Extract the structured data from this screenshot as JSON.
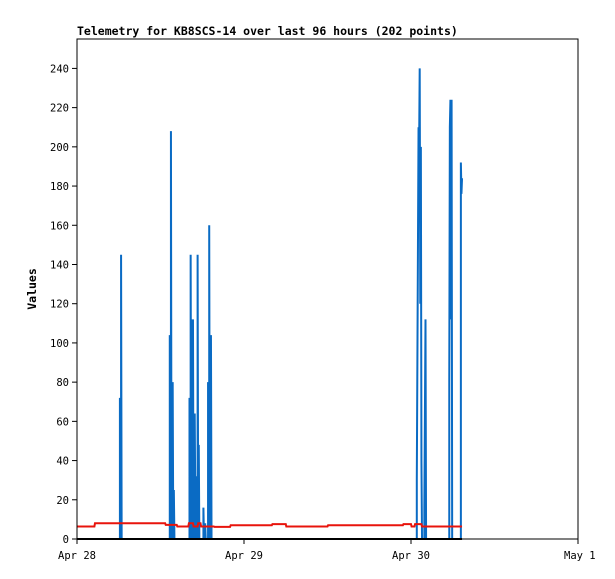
{
  "chart_data": {
    "type": "line",
    "title": "Telemetry for KB8SCS-14 over last 96 hours (202 points)",
    "xlabel": "",
    "ylabel": "Values",
    "xlim": [
      "2024-04-28T00:00",
      "2024-05-01T00:00"
    ],
    "ylim": [
      0,
      255
    ],
    "x_ticks": [
      {
        "label": "Apr 28",
        "t": "2024-04-28T00:00"
      },
      {
        "label": "Apr 29",
        "t": "2024-04-29T00:00"
      },
      {
        "label": "Apr 30",
        "t": "2024-04-30T00:00"
      },
      {
        "label": "May 1",
        "t": "2024-05-01T00:00"
      }
    ],
    "y_ticks": [
      0,
      20,
      40,
      60,
      80,
      100,
      120,
      140,
      160,
      180,
      200,
      220,
      240
    ],
    "grid": false,
    "colors": {
      "series_blue": "#0a6bc4",
      "series_red": "#e8140c",
      "series_black": "#000000",
      "axis": "#000000"
    },
    "series": [
      {
        "color": "#0a6bc4",
        "points": [
          [
            "2024-04-28T00:00",
            0
          ],
          [
            "2024-04-28T06:10",
            0
          ],
          [
            "2024-04-28T06:10",
            72
          ],
          [
            "2024-04-28T06:15",
            0
          ],
          [
            "2024-04-28T06:20",
            0
          ],
          [
            "2024-04-28T06:20",
            145
          ],
          [
            "2024-04-28T06:25",
            0
          ],
          [
            "2024-04-28T13:20",
            0
          ],
          [
            "2024-04-28T13:20",
            104
          ],
          [
            "2024-04-28T13:25",
            0
          ],
          [
            "2024-04-28T13:30",
            0
          ],
          [
            "2024-04-28T13:30",
            208
          ],
          [
            "2024-04-28T13:35",
            0
          ],
          [
            "2024-04-28T13:45",
            0
          ],
          [
            "2024-04-28T13:45",
            80
          ],
          [
            "2024-04-28T13:50",
            0
          ],
          [
            "2024-04-28T13:55",
            0
          ],
          [
            "2024-04-28T13:55",
            25
          ],
          [
            "2024-04-28T14:00",
            0
          ],
          [
            "2024-04-28T16:10",
            0
          ],
          [
            "2024-04-28T16:10",
            72
          ],
          [
            "2024-04-28T16:15",
            0
          ],
          [
            "2024-04-28T16:20",
            0
          ],
          [
            "2024-04-28T16:20",
            145
          ],
          [
            "2024-04-28T16:25",
            0
          ],
          [
            "2024-04-28T16:30",
            0
          ],
          [
            "2024-04-28T16:30",
            112
          ],
          [
            "2024-04-28T16:35",
            16
          ],
          [
            "2024-04-28T16:40",
            112
          ],
          [
            "2024-04-28T16:45",
            0
          ],
          [
            "2024-04-28T16:55",
            0
          ],
          [
            "2024-04-28T16:55",
            64
          ],
          [
            "2024-04-28T17:00",
            16
          ],
          [
            "2024-04-28T17:05",
            32
          ],
          [
            "2024-04-28T17:10",
            0
          ],
          [
            "2024-04-28T17:20",
            0
          ],
          [
            "2024-04-28T17:20",
            145
          ],
          [
            "2024-04-28T17:25",
            0
          ],
          [
            "2024-04-28T17:30",
            0
          ],
          [
            "2024-04-28T17:30",
            48
          ],
          [
            "2024-04-28T17:35",
            0
          ],
          [
            "2024-04-28T18:10",
            0
          ],
          [
            "2024-04-28T18:10",
            16
          ],
          [
            "2024-04-28T18:15",
            0
          ],
          [
            "2024-04-28T18:25",
            0
          ],
          [
            "2024-04-28T18:25",
            8
          ],
          [
            "2024-04-28T18:30",
            0
          ],
          [
            "2024-04-28T18:50",
            0
          ],
          [
            "2024-04-28T18:50",
            80
          ],
          [
            "2024-04-28T18:55",
            0
          ],
          [
            "2024-04-28T19:00",
            0
          ],
          [
            "2024-04-28T19:00",
            160
          ],
          [
            "2024-04-28T19:05",
            0
          ],
          [
            "2024-04-28T19:15",
            0
          ],
          [
            "2024-04-28T19:15",
            104
          ],
          [
            "2024-04-28T19:20",
            0
          ],
          [
            "2024-04-30T00:50",
            0
          ],
          [
            "2024-04-30T00:50",
            30
          ],
          [
            "2024-04-30T00:55",
            90
          ],
          [
            "2024-04-30T01:00",
            150
          ],
          [
            "2024-04-30T01:05",
            210
          ],
          [
            "2024-04-30T01:10",
            200
          ],
          [
            "2024-04-30T01:15",
            240
          ],
          [
            "2024-04-30T01:20",
            120
          ],
          [
            "2024-04-30T01:25",
            200
          ],
          [
            "2024-04-30T01:30",
            40
          ],
          [
            "2024-04-30T01:35",
            0
          ],
          [
            "2024-04-30T01:55",
            0
          ],
          [
            "2024-04-30T01:55",
            16
          ],
          [
            "2024-04-30T02:00",
            64
          ],
          [
            "2024-04-30T02:05",
            112
          ],
          [
            "2024-04-30T02:10",
            0
          ],
          [
            "2024-04-30T05:30",
            0
          ],
          [
            "2024-04-30T05:30",
            80
          ],
          [
            "2024-04-30T05:35",
            210
          ],
          [
            "2024-04-30T05:40",
            224
          ],
          [
            "2024-04-30T05:45",
            112
          ],
          [
            "2024-04-30T05:50",
            224
          ],
          [
            "2024-04-30T05:55",
            0
          ],
          [
            "2024-04-30T07:10",
            0
          ],
          [
            "2024-04-30T07:10",
            192
          ],
          [
            "2024-04-30T07:15",
            176
          ],
          [
            "2024-04-30T07:20",
            184
          ]
        ]
      },
      {
        "color": "#e8140c",
        "points": [
          [
            "2024-04-28T00:00",
            6.4
          ],
          [
            "2024-04-28T02:30",
            6.4
          ],
          [
            "2024-04-28T02:35",
            8.0
          ],
          [
            "2024-04-28T12:40",
            8.0
          ],
          [
            "2024-04-28T12:45",
            7.2
          ],
          [
            "2024-04-28T14:20",
            7.2
          ],
          [
            "2024-04-28T14:25",
            6.4
          ],
          [
            "2024-04-28T16:00",
            6.4
          ],
          [
            "2024-04-28T16:05",
            8.0
          ],
          [
            "2024-04-28T16:40",
            8.0
          ],
          [
            "2024-04-28T16:45",
            6.4
          ],
          [
            "2024-04-28T17:20",
            6.4
          ],
          [
            "2024-04-28T17:25",
            8.0
          ],
          [
            "2024-04-28T17:45",
            8.0
          ],
          [
            "2024-04-28T17:50",
            6.4
          ],
          [
            "2024-04-28T19:40",
            6.4
          ],
          [
            "2024-04-28T19:45",
            6.2
          ],
          [
            "2024-04-28T22:00",
            6.2
          ],
          [
            "2024-04-28T22:05",
            7.0
          ],
          [
            "2024-04-29T04:00",
            7.0
          ],
          [
            "2024-04-29T04:05",
            7.6
          ],
          [
            "2024-04-29T06:00",
            7.6
          ],
          [
            "2024-04-29T06:05",
            6.4
          ],
          [
            "2024-04-29T12:00",
            6.4
          ],
          [
            "2024-04-29T12:05",
            7.0
          ],
          [
            "2024-04-29T22:50",
            7.0
          ],
          [
            "2024-04-29T22:55",
            7.6
          ],
          [
            "2024-04-30T00:00",
            7.6
          ],
          [
            "2024-04-30T00:05",
            6.4
          ],
          [
            "2024-04-30T00:30",
            6.4
          ],
          [
            "2024-04-30T00:35",
            7.6
          ],
          [
            "2024-04-30T01:30",
            7.6
          ],
          [
            "2024-04-30T01:35",
            6.4
          ],
          [
            "2024-04-30T07:20",
            6.4
          ]
        ]
      },
      {
        "color": "#000000",
        "points": [
          [
            "2024-04-28T00:00",
            0
          ],
          [
            "2024-04-30T07:20",
            0
          ]
        ]
      }
    ]
  }
}
